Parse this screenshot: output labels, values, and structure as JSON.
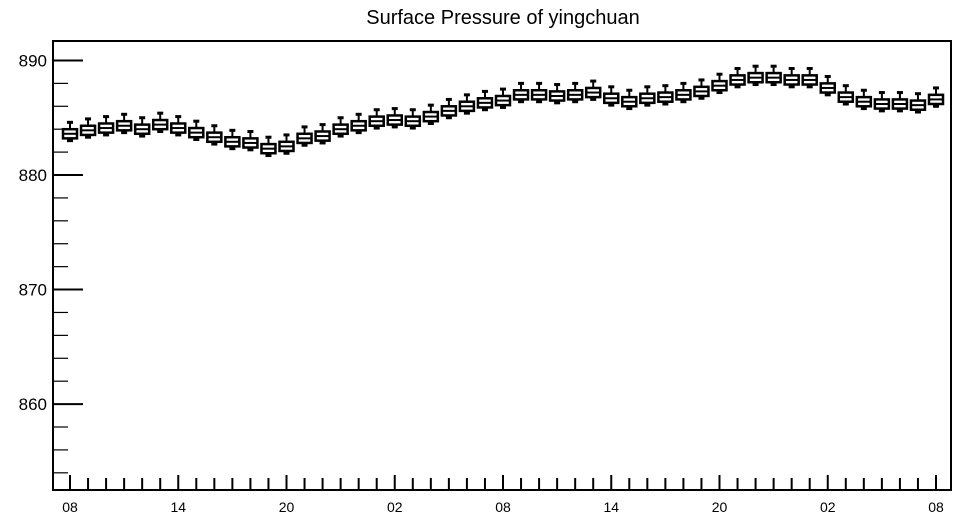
{
  "chart_data": {
    "type": "box",
    "title": "Surface Pressure of yingchuan",
    "xlabel": "",
    "ylabel": "",
    "ylim": [
      852.5,
      891.7
    ],
    "y_ticks": [
      860,
      870,
      880,
      890
    ],
    "x_tick_labels": [
      "08",
      "14",
      "20",
      "02",
      "08",
      "14",
      "20",
      "02",
      "08"
    ],
    "x_tick_positions": [
      0,
      6,
      12,
      18,
      24,
      30,
      36,
      42,
      48
    ],
    "series": [
      {
        "median": [
          883.6,
          883.9,
          884.1,
          884.3,
          884.0,
          884.4,
          884.1,
          883.7,
          883.3,
          882.9,
          882.8,
          882.3,
          882.5,
          883.2,
          883.4,
          884.0,
          884.3,
          884.7,
          884.8,
          884.7,
          885.1,
          885.6,
          886.0,
          886.3,
          886.5,
          887.0,
          887.0,
          886.9,
          887.0,
          887.2,
          886.7,
          886.4,
          886.7,
          886.8,
          887.0,
          887.3,
          887.8,
          888.3,
          888.5,
          888.5,
          888.3,
          888.3,
          887.6,
          886.8,
          886.4,
          886.2,
          886.2,
          886.1,
          886.6
        ],
        "q1": [
          883.2,
          883.5,
          883.7,
          883.9,
          883.6,
          884.0,
          883.7,
          883.3,
          882.9,
          882.5,
          882.4,
          881.9,
          882.1,
          882.8,
          883.0,
          883.6,
          883.9,
          884.3,
          884.4,
          884.3,
          884.7,
          885.2,
          885.6,
          885.9,
          886.1,
          886.6,
          886.6,
          886.5,
          886.6,
          886.8,
          886.3,
          886.0,
          886.3,
          886.4,
          886.6,
          886.9,
          887.4,
          887.9,
          888.1,
          888.1,
          887.9,
          887.9,
          887.2,
          886.4,
          886.0,
          885.8,
          885.8,
          885.7,
          886.2
        ],
        "q3": [
          884.0,
          884.3,
          884.5,
          884.7,
          884.4,
          884.8,
          884.5,
          884.1,
          883.7,
          883.3,
          883.2,
          882.7,
          882.9,
          883.6,
          883.8,
          884.4,
          884.7,
          885.1,
          885.2,
          885.1,
          885.5,
          886.0,
          886.4,
          886.7,
          886.9,
          887.4,
          887.4,
          887.3,
          887.4,
          887.6,
          887.1,
          886.8,
          887.1,
          887.2,
          887.4,
          887.7,
          888.2,
          888.7,
          888.9,
          888.9,
          888.7,
          888.7,
          888.0,
          887.2,
          886.8,
          886.6,
          886.6,
          886.5,
          887.0
        ],
        "whisker_low": [
          883.0,
          883.3,
          883.5,
          883.7,
          883.4,
          883.8,
          883.5,
          883.1,
          882.7,
          882.3,
          882.2,
          881.7,
          881.9,
          882.6,
          882.8,
          883.4,
          883.7,
          884.1,
          884.2,
          884.1,
          884.5,
          885.0,
          885.4,
          885.7,
          885.9,
          886.4,
          886.4,
          886.3,
          886.4,
          886.6,
          886.1,
          885.8,
          886.1,
          886.2,
          886.4,
          886.7,
          887.2,
          887.7,
          887.9,
          887.9,
          887.7,
          887.7,
          887.0,
          886.2,
          885.8,
          885.6,
          885.6,
          885.5,
          886.0
        ],
        "whisker_high": [
          884.6,
          884.9,
          885.1,
          885.3,
          885.0,
          885.4,
          885.1,
          884.7,
          884.3,
          883.9,
          883.8,
          883.3,
          883.5,
          884.2,
          884.4,
          885.0,
          885.3,
          885.7,
          885.8,
          885.7,
          886.1,
          886.6,
          887.0,
          887.3,
          887.5,
          888.0,
          888.0,
          887.9,
          888.0,
          888.2,
          887.7,
          887.4,
          887.7,
          887.8,
          888.0,
          888.3,
          888.8,
          889.3,
          889.5,
          889.5,
          889.3,
          889.3,
          888.6,
          887.8,
          887.4,
          887.2,
          887.2,
          887.1,
          887.6
        ]
      }
    ]
  }
}
